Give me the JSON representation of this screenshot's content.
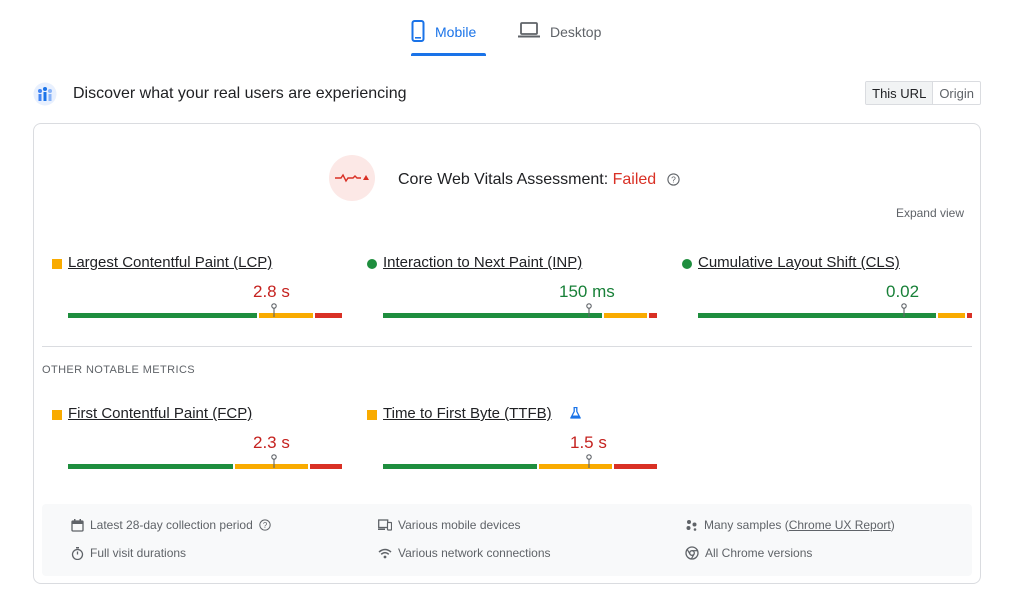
{
  "tabs": [
    {
      "label": "Mobile",
      "icon": "smartphone-icon",
      "active": true
    },
    {
      "label": "Desktop",
      "icon": "laptop-icon",
      "active": false
    }
  ],
  "header": {
    "title": "Discover what your real users are experiencing",
    "scope_options": [
      "This URL",
      "Origin"
    ],
    "scope_selected": "This URL"
  },
  "assessment": {
    "label": "Core Web Vitals Assessment:",
    "status": "Failed",
    "expand_label": "Expand view"
  },
  "core_metrics": [
    {
      "name": "Largest Contentful Paint (LCP)",
      "value": "2.8 s",
      "rating": "needs-improvement",
      "distribution": {
        "good": 0.7,
        "needs_improvement": 0.2,
        "poor": 0.1
      },
      "percentile_position": 0.75
    },
    {
      "name": "Interaction to Next Paint (INP)",
      "value": "150 ms",
      "rating": "good",
      "distribution": {
        "good": 0.81,
        "needs_improvement": 0.16,
        "poor": 0.03
      },
      "percentile_position": 0.75
    },
    {
      "name": "Cumulative Layout Shift (CLS)",
      "value": "0.02",
      "rating": "good",
      "distribution": {
        "good": 0.88,
        "needs_improvement": 0.1,
        "poor": 0.02
      },
      "percentile_position": 0.75
    }
  ],
  "other_section_label": "OTHER NOTABLE METRICS",
  "other_metrics": [
    {
      "name": "First Contentful Paint (FCP)",
      "value": "2.3 s",
      "rating": "needs-improvement",
      "distribution": {
        "good": 0.61,
        "needs_improvement": 0.27,
        "poor": 0.12
      },
      "percentile_position": 0.75
    },
    {
      "name": "Time to First Byte (TTFB)",
      "value": "1.5 s",
      "rating": "needs-improvement",
      "distribution": {
        "good": 0.57,
        "needs_improvement": 0.27,
        "poor": 0.16
      },
      "percentile_position": 0.75,
      "experimental": true
    }
  ],
  "info": {
    "collection_period": "Latest 28-day collection period",
    "visit_durations": "Full visit durations",
    "devices": "Various mobile devices",
    "network": "Various network connections",
    "samples_prefix": "Many samples (",
    "samples_link": "Chrome UX Report",
    "samples_suffix": ")",
    "chrome_versions": "All Chrome versions"
  },
  "colors": {
    "accent": "#1a73e8",
    "good": "#1e8e3e",
    "needs_improvement": "#f9ab00",
    "poor": "#d93025"
  }
}
